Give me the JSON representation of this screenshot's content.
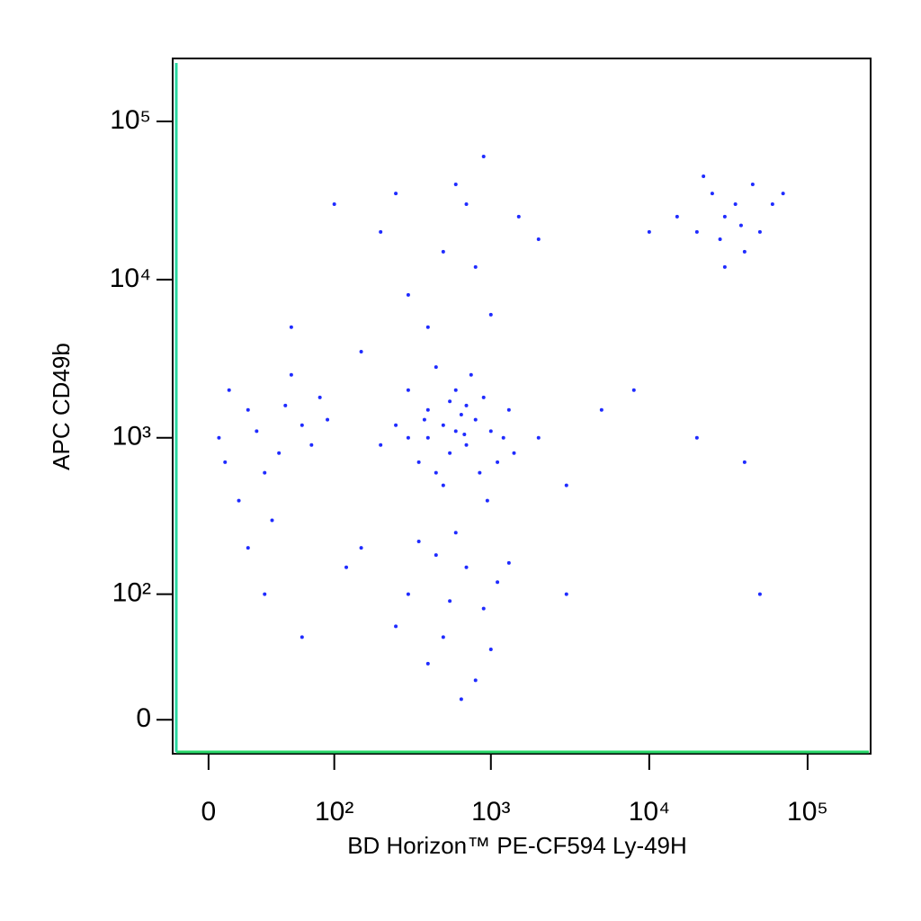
{
  "chart_data": {
    "type": "scatter",
    "xlabel": "BD Horizon™ PE-CF594 Ly-49H",
    "ylabel": "APC CD49b",
    "xscale": "biexponential",
    "yscale": "biexponential",
    "xlim": [
      -18,
      250000
    ],
    "ylim": [
      -17,
      250000
    ],
    "xticks": [
      0,
      {
        "value": 100,
        "label": "10²"
      },
      {
        "value": 1000,
        "label": "10³"
      },
      {
        "value": 10000,
        "label": "10⁴"
      },
      {
        "value": 100000,
        "label": "10⁵"
      }
    ],
    "yticks": [
      0,
      {
        "value": 100,
        "label": "10²"
      },
      {
        "value": 1000,
        "label": "10³"
      },
      {
        "value": 10000,
        "label": "10⁴"
      },
      {
        "value": 100000,
        "label": "10⁵"
      }
    ],
    "color": "#1f2bff",
    "x": [
      300,
      500,
      700,
      400,
      600,
      800,
      1000,
      350,
      450,
      900,
      1200,
      550,
      650,
      750,
      250,
      1100,
      500,
      300,
      700,
      400,
      600,
      850,
      1300,
      200,
      450,
      950,
      1400,
      550,
      380,
      680,
      5,
      20,
      40,
      60,
      10,
      30,
      80,
      15,
      50,
      70,
      25,
      90,
      35,
      8,
      45,
      150,
      300,
      500,
      700,
      400,
      600,
      900,
      1100,
      250,
      800,
      120,
      450,
      650,
      1000,
      350,
      550,
      30,
      60,
      20,
      1300,
      300,
      500,
      700,
      400,
      600,
      200,
      1000,
      800,
      150,
      1500,
      100,
      50,
      900,
      250,
      2000,
      20000,
      30000,
      40000,
      25000,
      35000,
      50000,
      15000,
      45000,
      30000,
      60000,
      22000,
      38000,
      28000,
      10000,
      70000,
      2000,
      3000,
      5000,
      8000,
      20000,
      40000,
      3000,
      50000
    ],
    "y": [
      1000,
      1200,
      900,
      1500,
      2000,
      1300,
      1100,
      700,
      600,
      1800,
      1000,
      800,
      1400,
      2500,
      1200,
      700,
      500,
      2000,
      1600,
      1000,
      1100,
      600,
      1500,
      900,
      2800,
      400,
      800,
      1700,
      1300,
      1050,
      1000,
      1500,
      800,
      1200,
      2000,
      600,
      1800,
      400,
      2500,
      900,
      1100,
      1300,
      300,
      700,
      1600,
      200,
      100,
      50,
      150,
      30,
      250,
      80,
      120,
      60,
      20,
      150,
      180,
      10,
      40,
      220,
      90,
      100,
      50,
      200,
      160,
      8000,
      15000,
      30000,
      5000,
      40000,
      20000,
      6000,
      12000,
      3500,
      25000,
      30000,
      5000,
      60000,
      35000,
      18000,
      20000,
      25000,
      15000,
      35000,
      30000,
      20000,
      25000,
      40000,
      12000,
      30000,
      45000,
      22000,
      18000,
      20000,
      35000,
      1000,
      500,
      1500,
      2000,
      1000,
      700,
      100,
      100
    ]
  }
}
